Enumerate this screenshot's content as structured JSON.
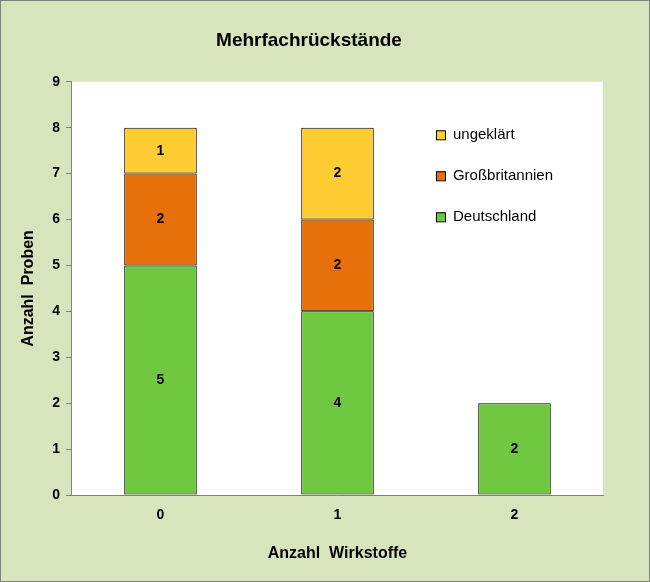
{
  "chart_data": {
    "type": "bar",
    "title": "Mehrfachrückstände",
    "x_label": "Anzahl  Wirkstoffe",
    "y_label": "Anzahl  Proben",
    "categories": [
      "0",
      "1",
      "2"
    ],
    "series": [
      {
        "name": "Deutschland",
        "color": "#70c840",
        "values": [
          5,
          4,
          2
        ]
      },
      {
        "name": "Großbritannien",
        "color": "#e8700a",
        "values": [
          2,
          2,
          null
        ]
      },
      {
        "name": "ungeklärt",
        "color": "#ffcc33",
        "values": [
          1,
          2,
          null
        ]
      }
    ],
    "ylim": [
      0,
      9
    ],
    "yticks": [
      0,
      1,
      2,
      3,
      4,
      5,
      6,
      7,
      8,
      9
    ],
    "stacked": true,
    "data_labels": true,
    "grid": false,
    "legend": "top-right"
  }
}
